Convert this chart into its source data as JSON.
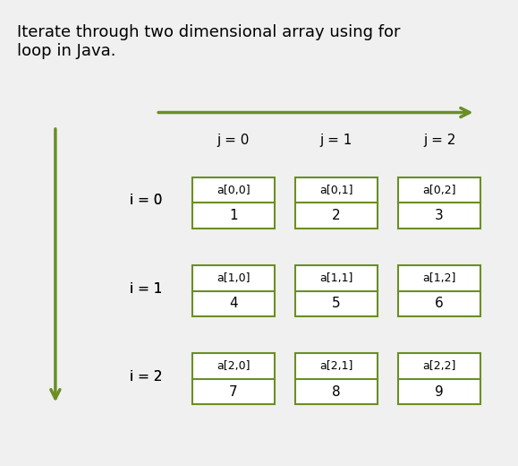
{
  "title": "Iterate through two dimensional array using for\nloop in Java.",
  "title_fontsize": 13,
  "background_color": "#f0f0f0",
  "arrow_color": "#6b8e23",
  "box_color": "#6b8e23",
  "text_color": "#000000",
  "row_labels": [
    "i = 0",
    "i = 1",
    "i = 2"
  ],
  "col_labels": [
    "j = 0",
    "j = 1",
    "j = 2"
  ],
  "cell_labels": [
    [
      "a[0,0]",
      "a[0,1]",
      "a[0,2]"
    ],
    [
      "a[1,0]",
      "a[1,1]",
      "a[1,2]"
    ],
    [
      "a[2,0]",
      "a[2,1]",
      "a[2,2]"
    ]
  ],
  "cell_values": [
    [
      "1",
      "2",
      "3"
    ],
    [
      "4",
      "5",
      "6"
    ],
    [
      "7",
      "8",
      "9"
    ]
  ],
  "fig_width": 5.79,
  "fig_height": 5.2,
  "dpi": 100
}
